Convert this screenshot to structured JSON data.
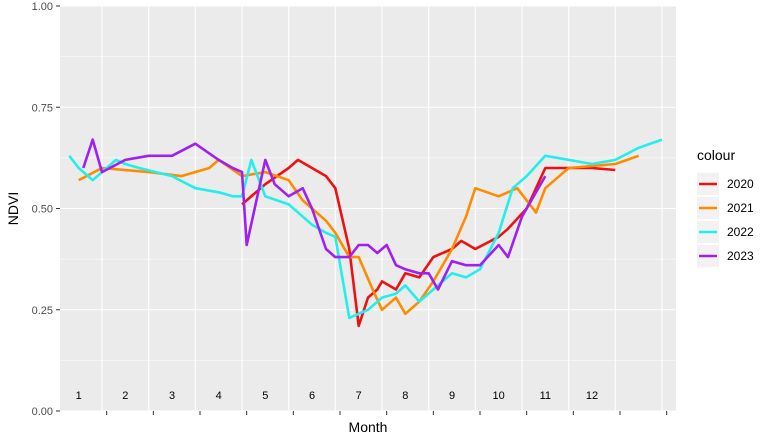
{
  "chart_data": {
    "type": "line",
    "title": "",
    "xlabel": "Month",
    "ylabel": "NDVI",
    "ylim": [
      0,
      1
    ],
    "xlim": [
      0.6,
      13.8
    ],
    "y_ticks": [
      {
        "value": 0,
        "label": "0.00"
      },
      {
        "value": 0.25,
        "label": "0.25"
      },
      {
        "value": 0.5,
        "label": "0.50"
      },
      {
        "value": 0.75,
        "label": "0.75"
      },
      {
        "value": 1,
        "label": "1.00"
      }
    ],
    "x_month_labels": [
      "1",
      "2",
      "3",
      "4",
      "5",
      "6",
      "7",
      "8",
      "9",
      "10",
      "11",
      "12"
    ],
    "x_month_label_positions": [
      1,
      2,
      3,
      4,
      5,
      6,
      7,
      8,
      9,
      10,
      11,
      12
    ],
    "x_gridlines": [
      1.5,
      2.5,
      3.5,
      4.5,
      5.5,
      6.5,
      7.5,
      8.5,
      9.5,
      10.5,
      11.5,
      12.5,
      13.5
    ],
    "x_tick_marks": [
      1.6,
      2.6,
      3.6,
      4.6,
      5.6,
      6.6,
      7.6,
      8.6,
      9.6,
      10.6,
      11.6,
      12.6,
      13.6
    ],
    "y_label_position": 0.04,
    "grid": true,
    "legend": {
      "title": "colour",
      "position": "right"
    },
    "series": [
      {
        "name": "2020",
        "color": "#EE1111",
        "x": [
          4.5,
          5.0,
          5.5,
          5.7,
          6.0,
          6.3,
          6.5,
          6.8,
          7.0,
          7.2,
          7.4,
          7.5,
          7.8,
          8.0,
          8.3,
          8.6,
          9.0,
          9.2,
          9.5,
          10.0,
          10.2,
          10.6,
          11.0,
          12.0,
          12.5
        ],
        "y": [
          0.51,
          0.56,
          0.6,
          0.62,
          0.6,
          0.58,
          0.55,
          0.4,
          0.21,
          0.28,
          0.3,
          0.32,
          0.3,
          0.34,
          0.33,
          0.38,
          0.4,
          0.42,
          0.4,
          0.43,
          0.45,
          0.5,
          0.6,
          0.6,
          0.595
        ]
      },
      {
        "name": "2021",
        "color": "#FF8C00",
        "x": [
          1.0,
          1.5,
          2.5,
          3.2,
          3.8,
          4.0,
          4.5,
          5.0,
          5.5,
          5.8,
          6.0,
          6.3,
          6.5,
          6.8,
          7.0,
          7.3,
          7.5,
          7.8,
          8.0,
          8.3,
          8.6,
          9.0,
          9.3,
          9.5,
          10.0,
          10.4,
          10.8,
          11.0,
          11.5,
          12.5,
          13.0
        ],
        "y": [
          0.57,
          0.6,
          0.59,
          0.58,
          0.6,
          0.62,
          0.58,
          0.59,
          0.57,
          0.52,
          0.5,
          0.47,
          0.44,
          0.38,
          0.38,
          0.3,
          0.25,
          0.28,
          0.24,
          0.27,
          0.32,
          0.4,
          0.48,
          0.55,
          0.53,
          0.55,
          0.49,
          0.55,
          0.6,
          0.61,
          0.63
        ]
      },
      {
        "name": "2022",
        "color": "#22EEEE",
        "x": [
          0.8,
          1.0,
          1.3,
          1.6,
          1.8,
          2.0,
          2.3,
          3.0,
          3.5,
          4.0,
          4.3,
          4.5,
          4.7,
          5.0,
          5.5,
          6.0,
          6.3,
          6.5,
          6.8,
          7.0,
          7.2,
          7.5,
          7.8,
          8.0,
          8.3,
          8.6,
          9.0,
          9.3,
          9.6,
          10.0,
          10.3,
          10.6,
          11.0,
          11.5,
          12.0,
          12.5,
          13.0,
          13.5
        ],
        "y": [
          0.63,
          0.6,
          0.57,
          0.6,
          0.62,
          0.61,
          0.6,
          0.58,
          0.55,
          0.54,
          0.53,
          0.53,
          0.62,
          0.53,
          0.51,
          0.46,
          0.44,
          0.43,
          0.23,
          0.24,
          0.25,
          0.28,
          0.29,
          0.31,
          0.27,
          0.3,
          0.34,
          0.33,
          0.35,
          0.44,
          0.55,
          0.58,
          0.63,
          0.62,
          0.61,
          0.62,
          0.65,
          0.67
        ]
      },
      {
        "name": "2023",
        "color": "#A020F0",
        "x": [
          1.1,
          1.3,
          1.5,
          2.0,
          2.5,
          3.0,
          3.5,
          4.0,
          4.3,
          4.5,
          4.6,
          5.0,
          5.2,
          5.5,
          5.8,
          6.0,
          6.3,
          6.5,
          6.8,
          7.0,
          7.2,
          7.4,
          7.6,
          7.8,
          8.0,
          8.3,
          8.5,
          8.7,
          9.0,
          9.3,
          9.6,
          10.0,
          10.2,
          10.5,
          10.8,
          11.0
        ],
        "y": [
          0.6,
          0.67,
          0.59,
          0.62,
          0.63,
          0.63,
          0.66,
          0.62,
          0.6,
          0.59,
          0.41,
          0.62,
          0.56,
          0.53,
          0.55,
          0.5,
          0.4,
          0.38,
          0.38,
          0.41,
          0.41,
          0.39,
          0.41,
          0.36,
          0.35,
          0.34,
          0.34,
          0.3,
          0.37,
          0.36,
          0.36,
          0.41,
          0.38,
          0.48,
          0.54,
          0.58
        ]
      }
    ]
  }
}
